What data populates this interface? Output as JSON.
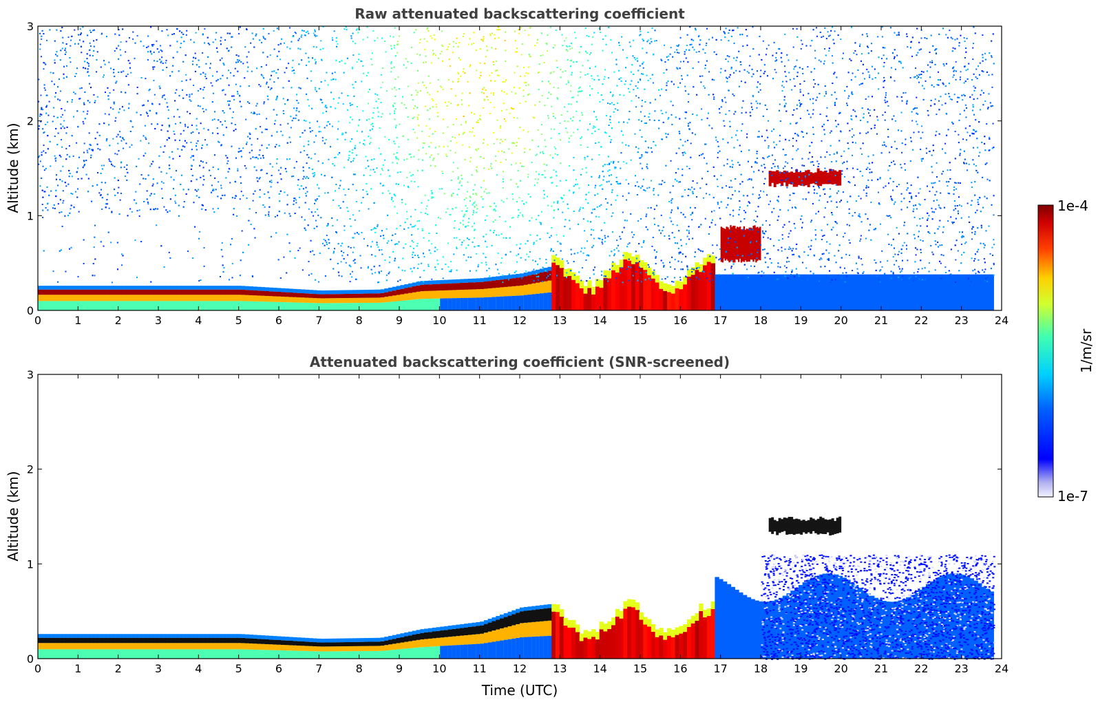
{
  "chart_data": [
    {
      "type": "heatmap",
      "title": "Raw attenuated backscattering coefficient",
      "xlabel": "",
      "ylabel": "Altitude (km)",
      "xlim": [
        0,
        24
      ],
      "ylim": [
        0,
        3
      ],
      "x_ticks": [
        "0",
        "1",
        "2",
        "3",
        "4",
        "5",
        "6",
        "7",
        "8",
        "9",
        "10",
        "11",
        "12",
        "13",
        "14",
        "15",
        "16",
        "17",
        "18",
        "19",
        "20",
        "21",
        "22",
        "23",
        "24"
      ],
      "y_ticks": [
        "0",
        "1",
        "2",
        "3"
      ],
      "colormap": "jet",
      "data_end_hour": 23.8,
      "features": [
        {
          "kind": "boundary-layer-top",
          "points": [
            [
              0,
              0.22
            ],
            [
              5,
              0.22
            ],
            [
              7,
              0.17
            ],
            [
              8.5,
              0.18
            ],
            [
              9.5,
              0.27
            ],
            [
              11,
              0.3
            ],
            [
              12,
              0.35
            ],
            [
              12.7,
              0.42
            ]
          ]
        },
        {
          "kind": "strong-return-surface",
          "x_range": [
            12.7,
            16.8
          ],
          "top_alt": 0.45
        },
        {
          "kind": "cloud-layer",
          "x_range": [
            18.2,
            20.0
          ],
          "alt_range": [
            1.3,
            1.5
          ]
        },
        {
          "kind": "cloud-layer",
          "x_range": [
            17.0,
            18.0
          ],
          "alt_range": [
            0.5,
            0.9
          ]
        },
        {
          "kind": "noise-region",
          "x_range": [
            0,
            23.8
          ],
          "alt_range": [
            0.3,
            3
          ]
        }
      ]
    },
    {
      "type": "heatmap",
      "title": "Attenuated backscattering coefficient (SNR-screened)",
      "xlabel": "Time (UTC)",
      "ylabel": "Altitude (km)",
      "xlim": [
        0,
        24
      ],
      "ylim": [
        0,
        3
      ],
      "x_ticks": [
        "0",
        "1",
        "2",
        "3",
        "4",
        "5",
        "6",
        "7",
        "8",
        "9",
        "10",
        "11",
        "12",
        "13",
        "14",
        "15",
        "16",
        "17",
        "18",
        "19",
        "20",
        "21",
        "22",
        "23",
        "24"
      ],
      "y_ticks": [
        "0",
        "1",
        "2",
        "3"
      ],
      "colormap": "jet",
      "data_end_hour": 23.8,
      "features": [
        {
          "kind": "boundary-layer-top",
          "points": [
            [
              0,
              0.22
            ],
            [
              5,
              0.22
            ],
            [
              7,
              0.17
            ],
            [
              8.5,
              0.18
            ],
            [
              9.5,
              0.27
            ],
            [
              11,
              0.35
            ],
            [
              12,
              0.5
            ],
            [
              13,
              0.55
            ]
          ]
        },
        {
          "kind": "strong-return-surface",
          "x_range": [
            12.7,
            16.8
          ],
          "top_alt": 0.45
        },
        {
          "kind": "cloud-layer",
          "x_range": [
            18.2,
            20.0
          ],
          "alt_range": [
            1.3,
            1.5
          ]
        },
        {
          "kind": "screened-aerosol",
          "x_range": [
            18.0,
            23.8
          ],
          "alt_range": [
            0,
            1.1
          ]
        }
      ]
    }
  ],
  "colorbar": {
    "label": "1/m/sr",
    "max_label": "1e-4",
    "min_label": "1e-7",
    "scale": "log",
    "range": [
      1e-07,
      0.0001
    ]
  }
}
